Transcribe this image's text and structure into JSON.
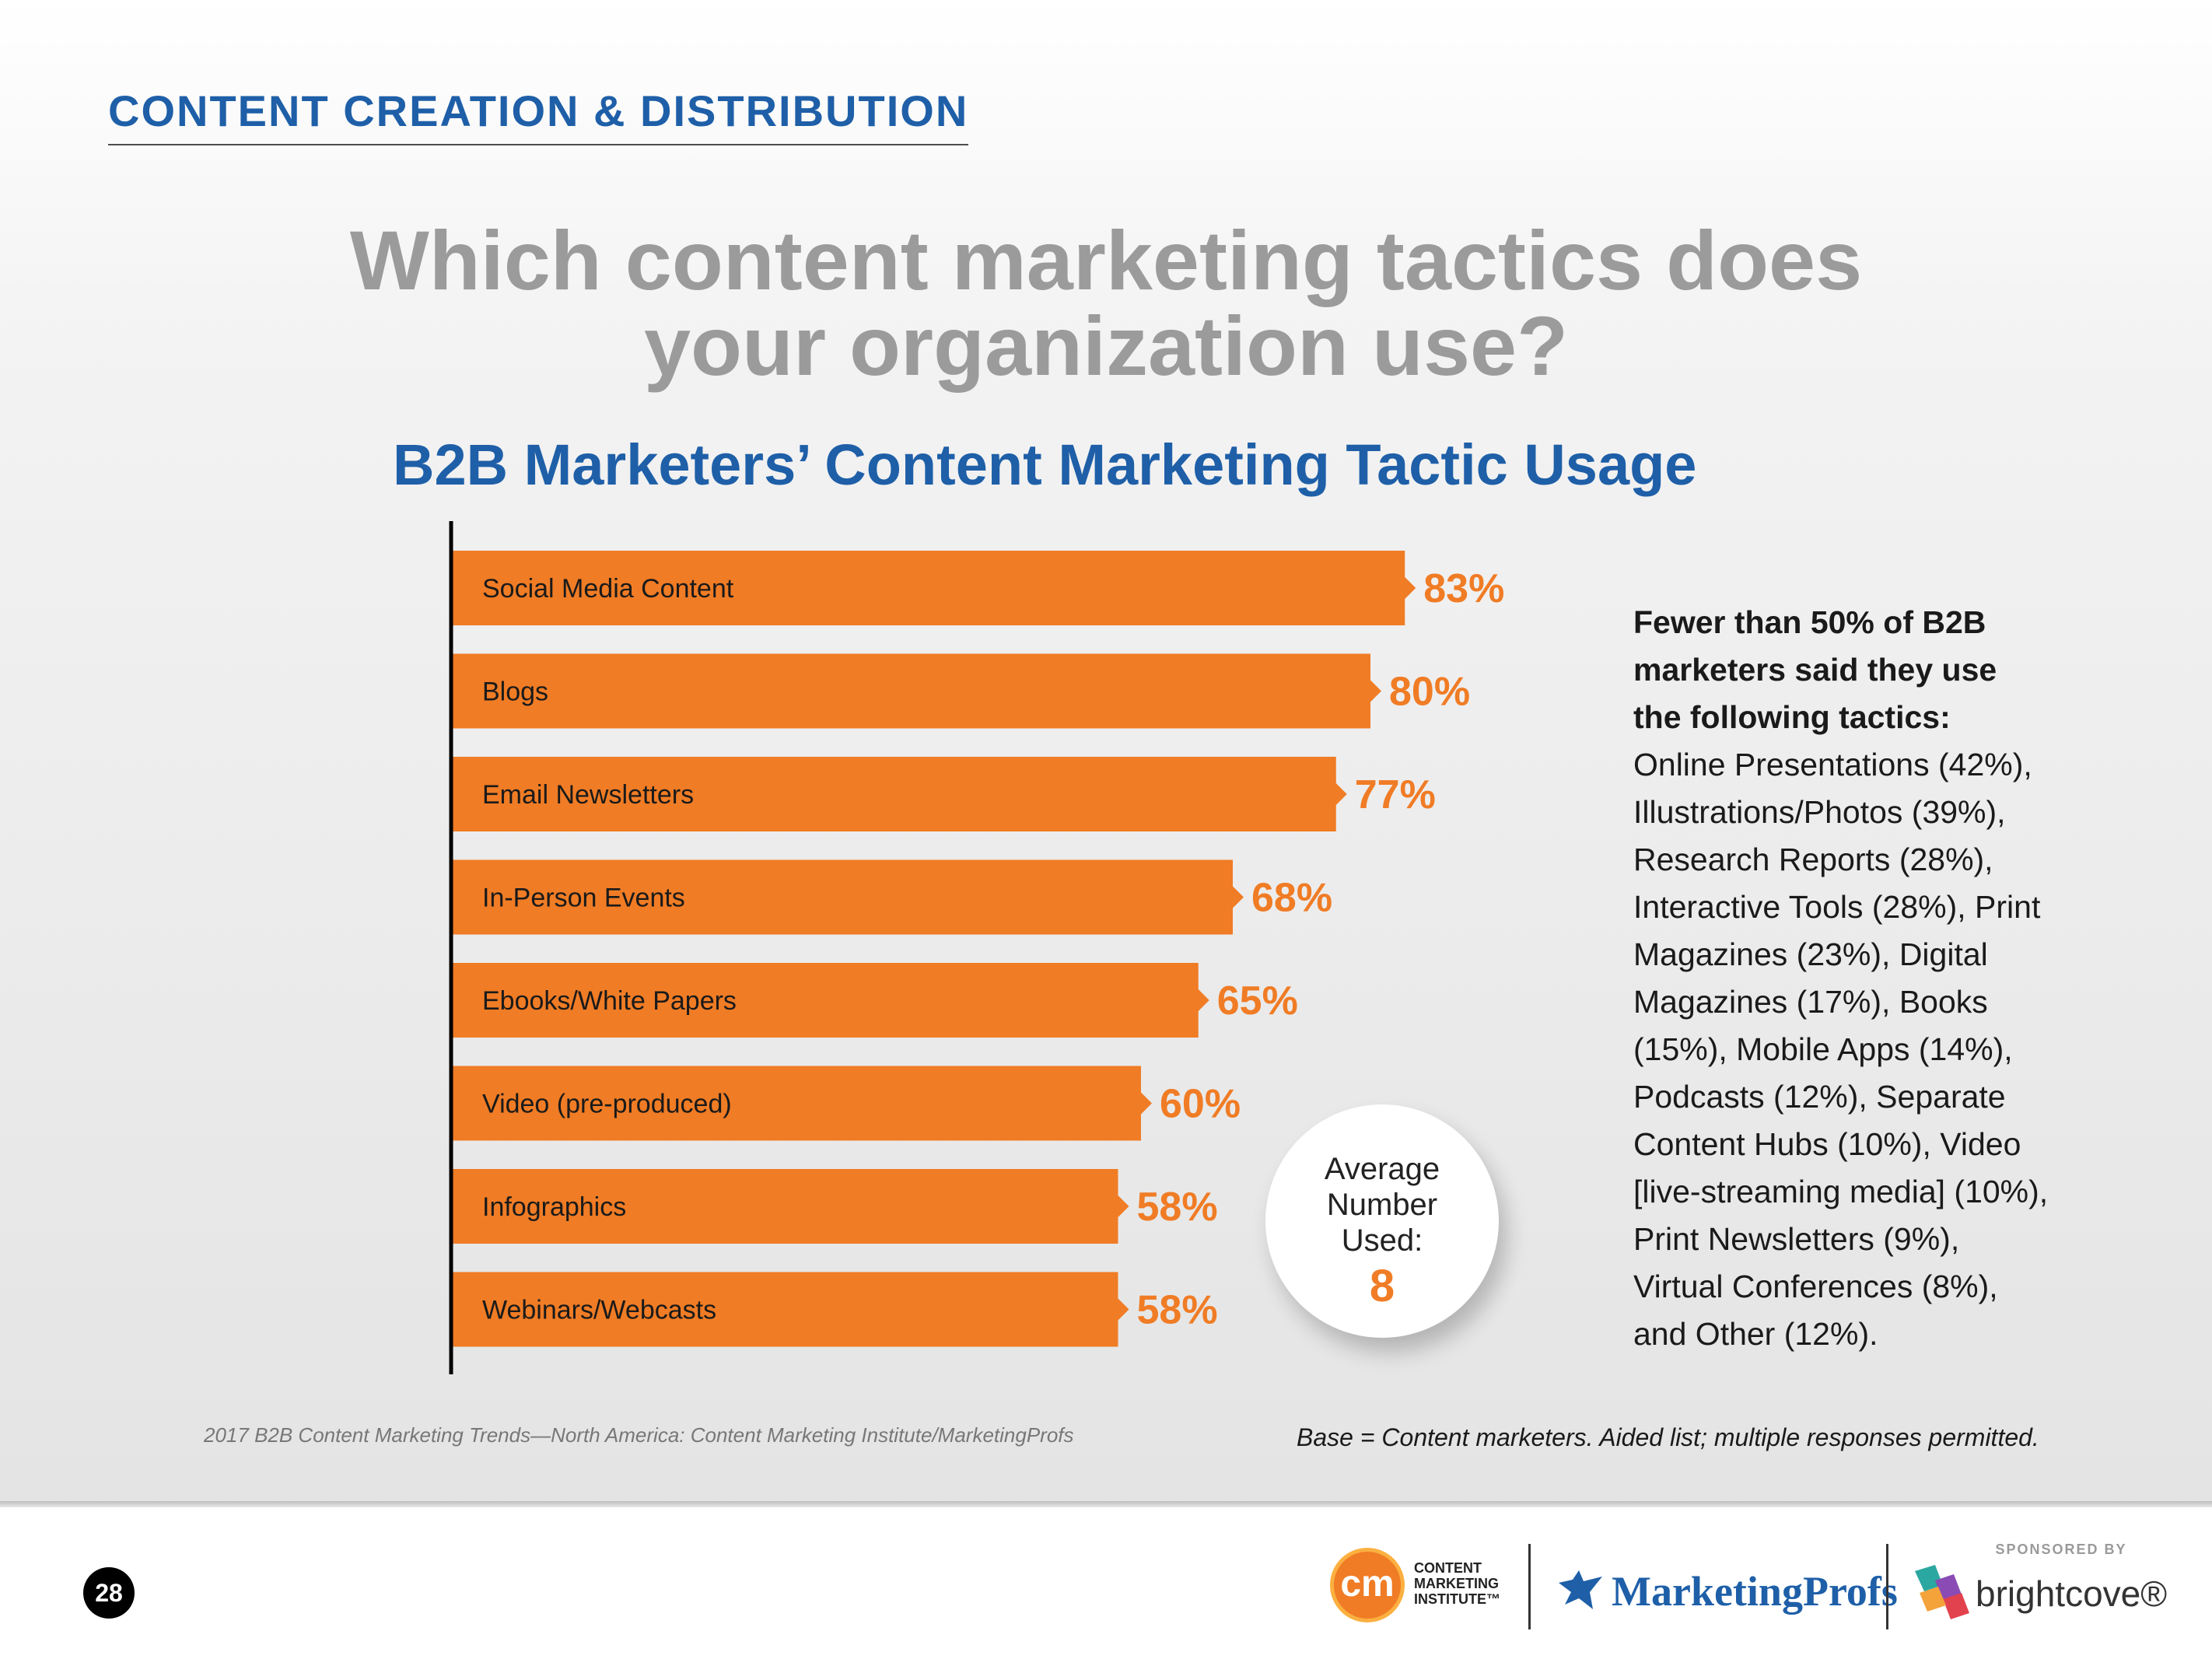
{
  "header": {
    "section_title": "CONTENT CREATION & DISTRIBUTION",
    "question_line1": "Which content marketing tactics does",
    "question_line2": "your organization use?"
  },
  "chart_data": {
    "type": "bar",
    "orientation": "horizontal",
    "title": "B2B Marketers’ Content Marketing Tactic Usage",
    "categories": [
      "Social Media Content",
      "Blogs",
      "Email Newsletters",
      "In-Person Events",
      "Ebooks/White Papers",
      "Video (pre-produced)",
      "Infographics",
      "Webinars/Webcasts"
    ],
    "values": [
      83,
      80,
      77,
      68,
      65,
      60,
      58,
      58
    ],
    "value_labels": [
      "83%",
      "80%",
      "77%",
      "68%",
      "65%",
      "60%",
      "58%",
      "58%"
    ],
    "unit": "%",
    "bar_color": "#f07c25",
    "xlim": [
      0,
      100
    ],
    "grid": false,
    "legend": "none"
  },
  "badge": {
    "line1": "Average",
    "line2": "Number",
    "line3": "Used:",
    "value": "8"
  },
  "note": {
    "bold_line1": "Fewer than 50% of B2B",
    "bold_line2": "marketers said they use",
    "bold_line3": "the following tactics:",
    "lines": [
      "Online Presentations (42%),",
      "Illustrations/Photos (39%),",
      "Research Reports (28%),",
      "Interactive Tools (28%), Print",
      "Magazines (23%), Digital",
      "Magazines (17%), Books",
      "(15%), Mobile Apps (14%),",
      "Podcasts (12%), Separate",
      "Content Hubs (10%), Video",
      "[live-streaming media] (10%),",
      "Print Newsletters (9%),",
      "Virtual Conferences (8%),",
      "and Other (12%)."
    ]
  },
  "footnotes": {
    "source": "2017 B2B Content Marketing Trends—North America: Content Marketing Institute/MarketingProfs",
    "base": "Base = Content marketers. Aided list; multiple responses permitted."
  },
  "footer": {
    "page_number": "28",
    "cmi_mark": "cm",
    "cmi_line1": "CONTENT",
    "cmi_line2": "MARKETING",
    "cmi_line3": "INSTITUTE™",
    "marketingprofs": "MarketingProfs",
    "sponsored_by": "SPONSORED BY",
    "brightcove": "brightcove®"
  },
  "colors": {
    "accent_blue": "#1e5fa8",
    "accent_orange": "#f07c25",
    "question_gray": "#9b9b9b"
  },
  "icons": [
    "marketingprofs-bird-icon",
    "brightcove-mark-icon"
  ]
}
